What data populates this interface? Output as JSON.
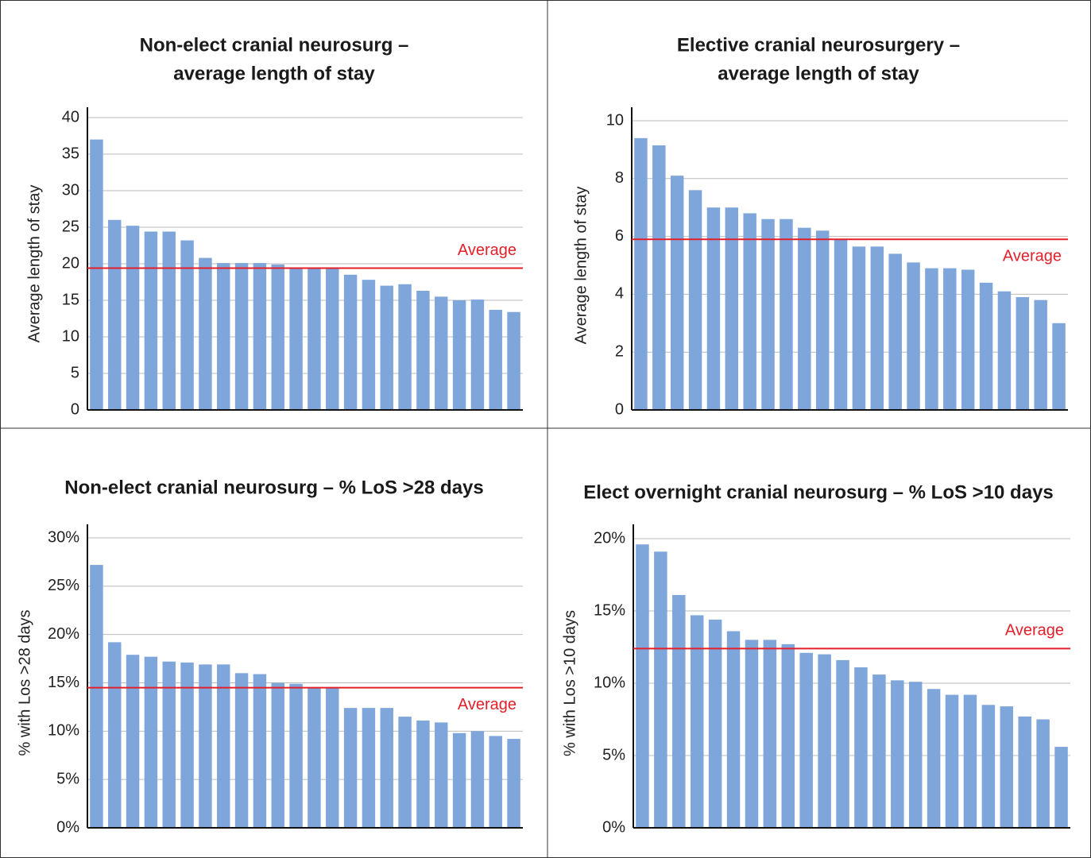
{
  "chart_data": [
    {
      "type": "bar",
      "title": [
        "Non-elect cranial neurosurg –",
        "average length of stay"
      ],
      "y_label": "Average length of stay",
      "categories": [
        null,
        null,
        null,
        null,
        null,
        null,
        null,
        null,
        null,
        null,
        null,
        null,
        null,
        null,
        null,
        null,
        null,
        null,
        null,
        null,
        null,
        null,
        null,
        null
      ],
      "values": [
        37,
        26,
        25.2,
        24.4,
        24.4,
        23.2,
        20.8,
        20.1,
        20.1,
        20.1,
        19.9,
        19.3,
        19.3,
        19.3,
        18.5,
        17.8,
        17,
        17.2,
        16.3,
        15.5,
        15,
        15.1,
        13.7,
        13.4
      ],
      "color": "#7ea6db",
      "ylim": [
        0,
        40
      ],
      "yticks": [
        0,
        5,
        10,
        15,
        20,
        25,
        30,
        35,
        40
      ],
      "grid": true,
      "reference_line": {
        "value": 19.4,
        "label": "Average",
        "color": "#e3202a",
        "label_position": "above"
      }
    },
    {
      "type": "bar",
      "title": [
        "Elective cranial neurosurgery –",
        "average length of stay"
      ],
      "y_label": "Average length of stay",
      "categories": [
        null,
        null,
        null,
        null,
        null,
        null,
        null,
        null,
        null,
        null,
        null,
        null,
        null,
        null,
        null,
        null,
        null,
        null,
        null,
        null,
        null,
        null,
        null,
        null
      ],
      "values": [
        9.4,
        9.15,
        8.1,
        7.6,
        7.0,
        7.0,
        6.8,
        6.6,
        6.6,
        6.3,
        6.2,
        5.9,
        5.65,
        5.65,
        5.4,
        5.1,
        4.9,
        4.9,
        4.85,
        4.4,
        4.1,
        3.9,
        3.8,
        3.0
      ],
      "color": "#7ea6db",
      "ylim": [
        0,
        10
      ],
      "yticks": [
        0,
        2,
        4,
        6,
        8,
        10
      ],
      "grid": true,
      "reference_line": {
        "value": 5.9,
        "label": "Average",
        "color": "#e3202a",
        "label_position": "below"
      }
    },
    {
      "type": "bar",
      "title": [
        "Non-elect cranial neurosurg – % LoS >28 days"
      ],
      "y_label": "% with Los >28 days",
      "categories": [
        null,
        null,
        null,
        null,
        null,
        null,
        null,
        null,
        null,
        null,
        null,
        null,
        null,
        null,
        null,
        null,
        null,
        null,
        null,
        null,
        null,
        null,
        null,
        null
      ],
      "values": [
        27.2,
        19.2,
        17.9,
        17.7,
        17.2,
        17.1,
        16.9,
        16.9,
        16.0,
        15.9,
        15.0,
        14.9,
        14.5,
        14.5,
        12.4,
        12.4,
        12.4,
        11.5,
        11.1,
        10.9,
        9.8,
        10.0,
        9.5,
        9.2
      ],
      "color": "#7ea6db",
      "ylim": [
        0,
        30
      ],
      "yticks": [
        {
          "value": 0,
          "label": "0%"
        },
        {
          "value": 5,
          "label": "5%"
        },
        {
          "value": 10,
          "label": "10%"
        },
        {
          "value": 15,
          "label": "15%"
        },
        {
          "value": 20,
          "label": "20%"
        },
        {
          "value": 25,
          "label": "25%"
        },
        {
          "value": 30,
          "label": "30%"
        }
      ],
      "grid": true,
      "reference_line": {
        "value": 14.5,
        "label": "Average",
        "color": "#e3202a",
        "label_position": "below"
      }
    },
    {
      "type": "bar",
      "title": [
        "Elect overnight cranial neurosurg – % LoS >10 days"
      ],
      "y_label": "% with Los >10 days",
      "categories": [
        null,
        null,
        null,
        null,
        null,
        null,
        null,
        null,
        null,
        null,
        null,
        null,
        null,
        null,
        null,
        null,
        null,
        null,
        null,
        null,
        null,
        null,
        null,
        null
      ],
      "values": [
        19.6,
        19.1,
        16.1,
        14.7,
        14.4,
        13.6,
        13.0,
        13.0,
        12.7,
        12.1,
        12.0,
        11.6,
        11.1,
        10.6,
        10.2,
        10.1,
        9.6,
        9.2,
        9.2,
        8.5,
        8.4,
        7.7,
        7.5,
        5.6
      ],
      "color": "#7ea6db",
      "ylim": [
        0,
        20
      ],
      "yticks": [
        {
          "value": 0,
          "label": "0%"
        },
        {
          "value": 5,
          "label": "5%"
        },
        {
          "value": 10,
          "label": "10%"
        },
        {
          "value": 15,
          "label": "15%"
        },
        {
          "value": 20,
          "label": "20%"
        }
      ],
      "grid": true,
      "reference_line": {
        "value": 12.4,
        "label": "Average",
        "color": "#e3202a",
        "label_position": "above"
      }
    }
  ]
}
